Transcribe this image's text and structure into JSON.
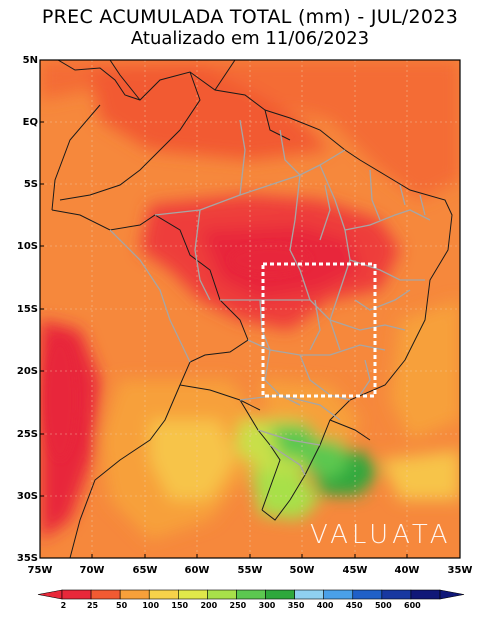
{
  "title_line1": "PREC ACUMULADA TOTAL (mm) - JUL/2023",
  "title_line2": "Atualizado em 11/06/2023",
  "lat_labels": [
    "5N",
    "EQ",
    "5S",
    "10S",
    "15S",
    "20S",
    "25S",
    "30S",
    "35S"
  ],
  "lon_labels": [
    "75W",
    "70W",
    "65W",
    "60W",
    "55W",
    "50W",
    "45W",
    "40W",
    "35W"
  ],
  "brand": "VALUATA",
  "colorbar": {
    "labels": [
      "2",
      "25",
      "50",
      "100",
      "150",
      "200",
      "250",
      "300",
      "350",
      "400",
      "450",
      "500",
      "600"
    ],
    "colors": [
      "#e8283a",
      "#f25a32",
      "#f7a03a",
      "#f7d24a",
      "#e0e84a",
      "#a8e04a",
      "#5cc850",
      "#2ea83c",
      "#8fd0f0",
      "#4aa0e8",
      "#2060c8",
      "#1838a0",
      "#101878"
    ]
  },
  "highlight_box": "dotted white rectangle over central Brazil"
}
